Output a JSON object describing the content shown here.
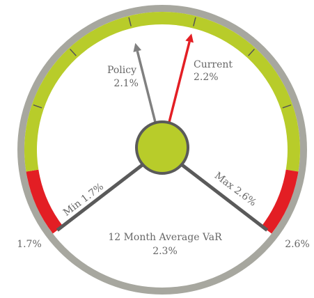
{
  "chart_data": {
    "type": "gauge",
    "min": 1.7,
    "max": 2.6,
    "min_label": "1.7%",
    "max_label": "2.6%",
    "spoke_labels": {
      "min": "Min 1.7%",
      "max": "Max 2.6%"
    },
    "ticks": [
      1.9,
      2.0,
      2.1,
      2.2,
      2.3,
      2.4
    ],
    "bands": [
      {
        "from": 1.7,
        "to": 1.8,
        "color": "#e31e24"
      },
      {
        "from": 1.8,
        "to": 2.5,
        "color": "#b8cc2a"
      },
      {
        "from": 2.5,
        "to": 2.6,
        "color": "#e31e24"
      }
    ],
    "needles": [
      {
        "name": "Policy",
        "value": 2.1,
        "value_label": "2.1%",
        "color": "#808080"
      },
      {
        "name": "Current",
        "value": 2.2,
        "value_label": "2.2%",
        "color": "#e31e24"
      }
    ],
    "center_title": "12 Month Average VaR",
    "center_value": 2.3,
    "center_value_label": "2.3%",
    "ring_color": "#a7a79f",
    "hub_color": "#b8cc2a"
  }
}
